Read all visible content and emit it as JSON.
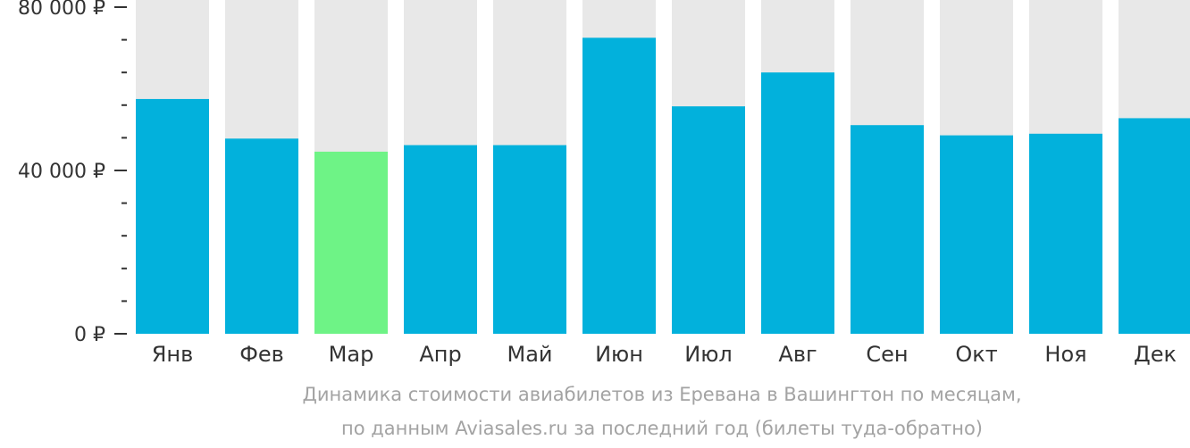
{
  "chart_data": {
    "type": "bar",
    "categories": [
      "Янв",
      "Фев",
      "Мар",
      "Апр",
      "Май",
      "Июн",
      "Июл",
      "Авг",
      "Сен",
      "Окт",
      "Ноя",
      "Дек"
    ],
    "values": [
      57500,
      47800,
      44600,
      46200,
      46200,
      72500,
      55700,
      64000,
      51100,
      48600,
      49000,
      52800
    ],
    "ylim": [
      0,
      80000
    ],
    "yticks": [
      {
        "value": 0,
        "label": "0 ₽"
      },
      {
        "value": 40000,
        "label": "40 000 ₽"
      },
      {
        "value": 80000,
        "label": "80 000 ₽"
      }
    ],
    "minor_tick_step": 8000,
    "highlight_index": 2,
    "colors": {
      "bar": "#02b1dc",
      "highlight": "#6ef386",
      "background_bar": "#e8e8e8",
      "axis_text": "#333333",
      "caption": "#a3a3a3"
    },
    "caption_lines": [
      "Динамика стоимости авиабилетов из Еревана в Вашингтон по месяцам,",
      "по данным Aviasales.ru за последний год (билеты туда-обратно)"
    ]
  }
}
